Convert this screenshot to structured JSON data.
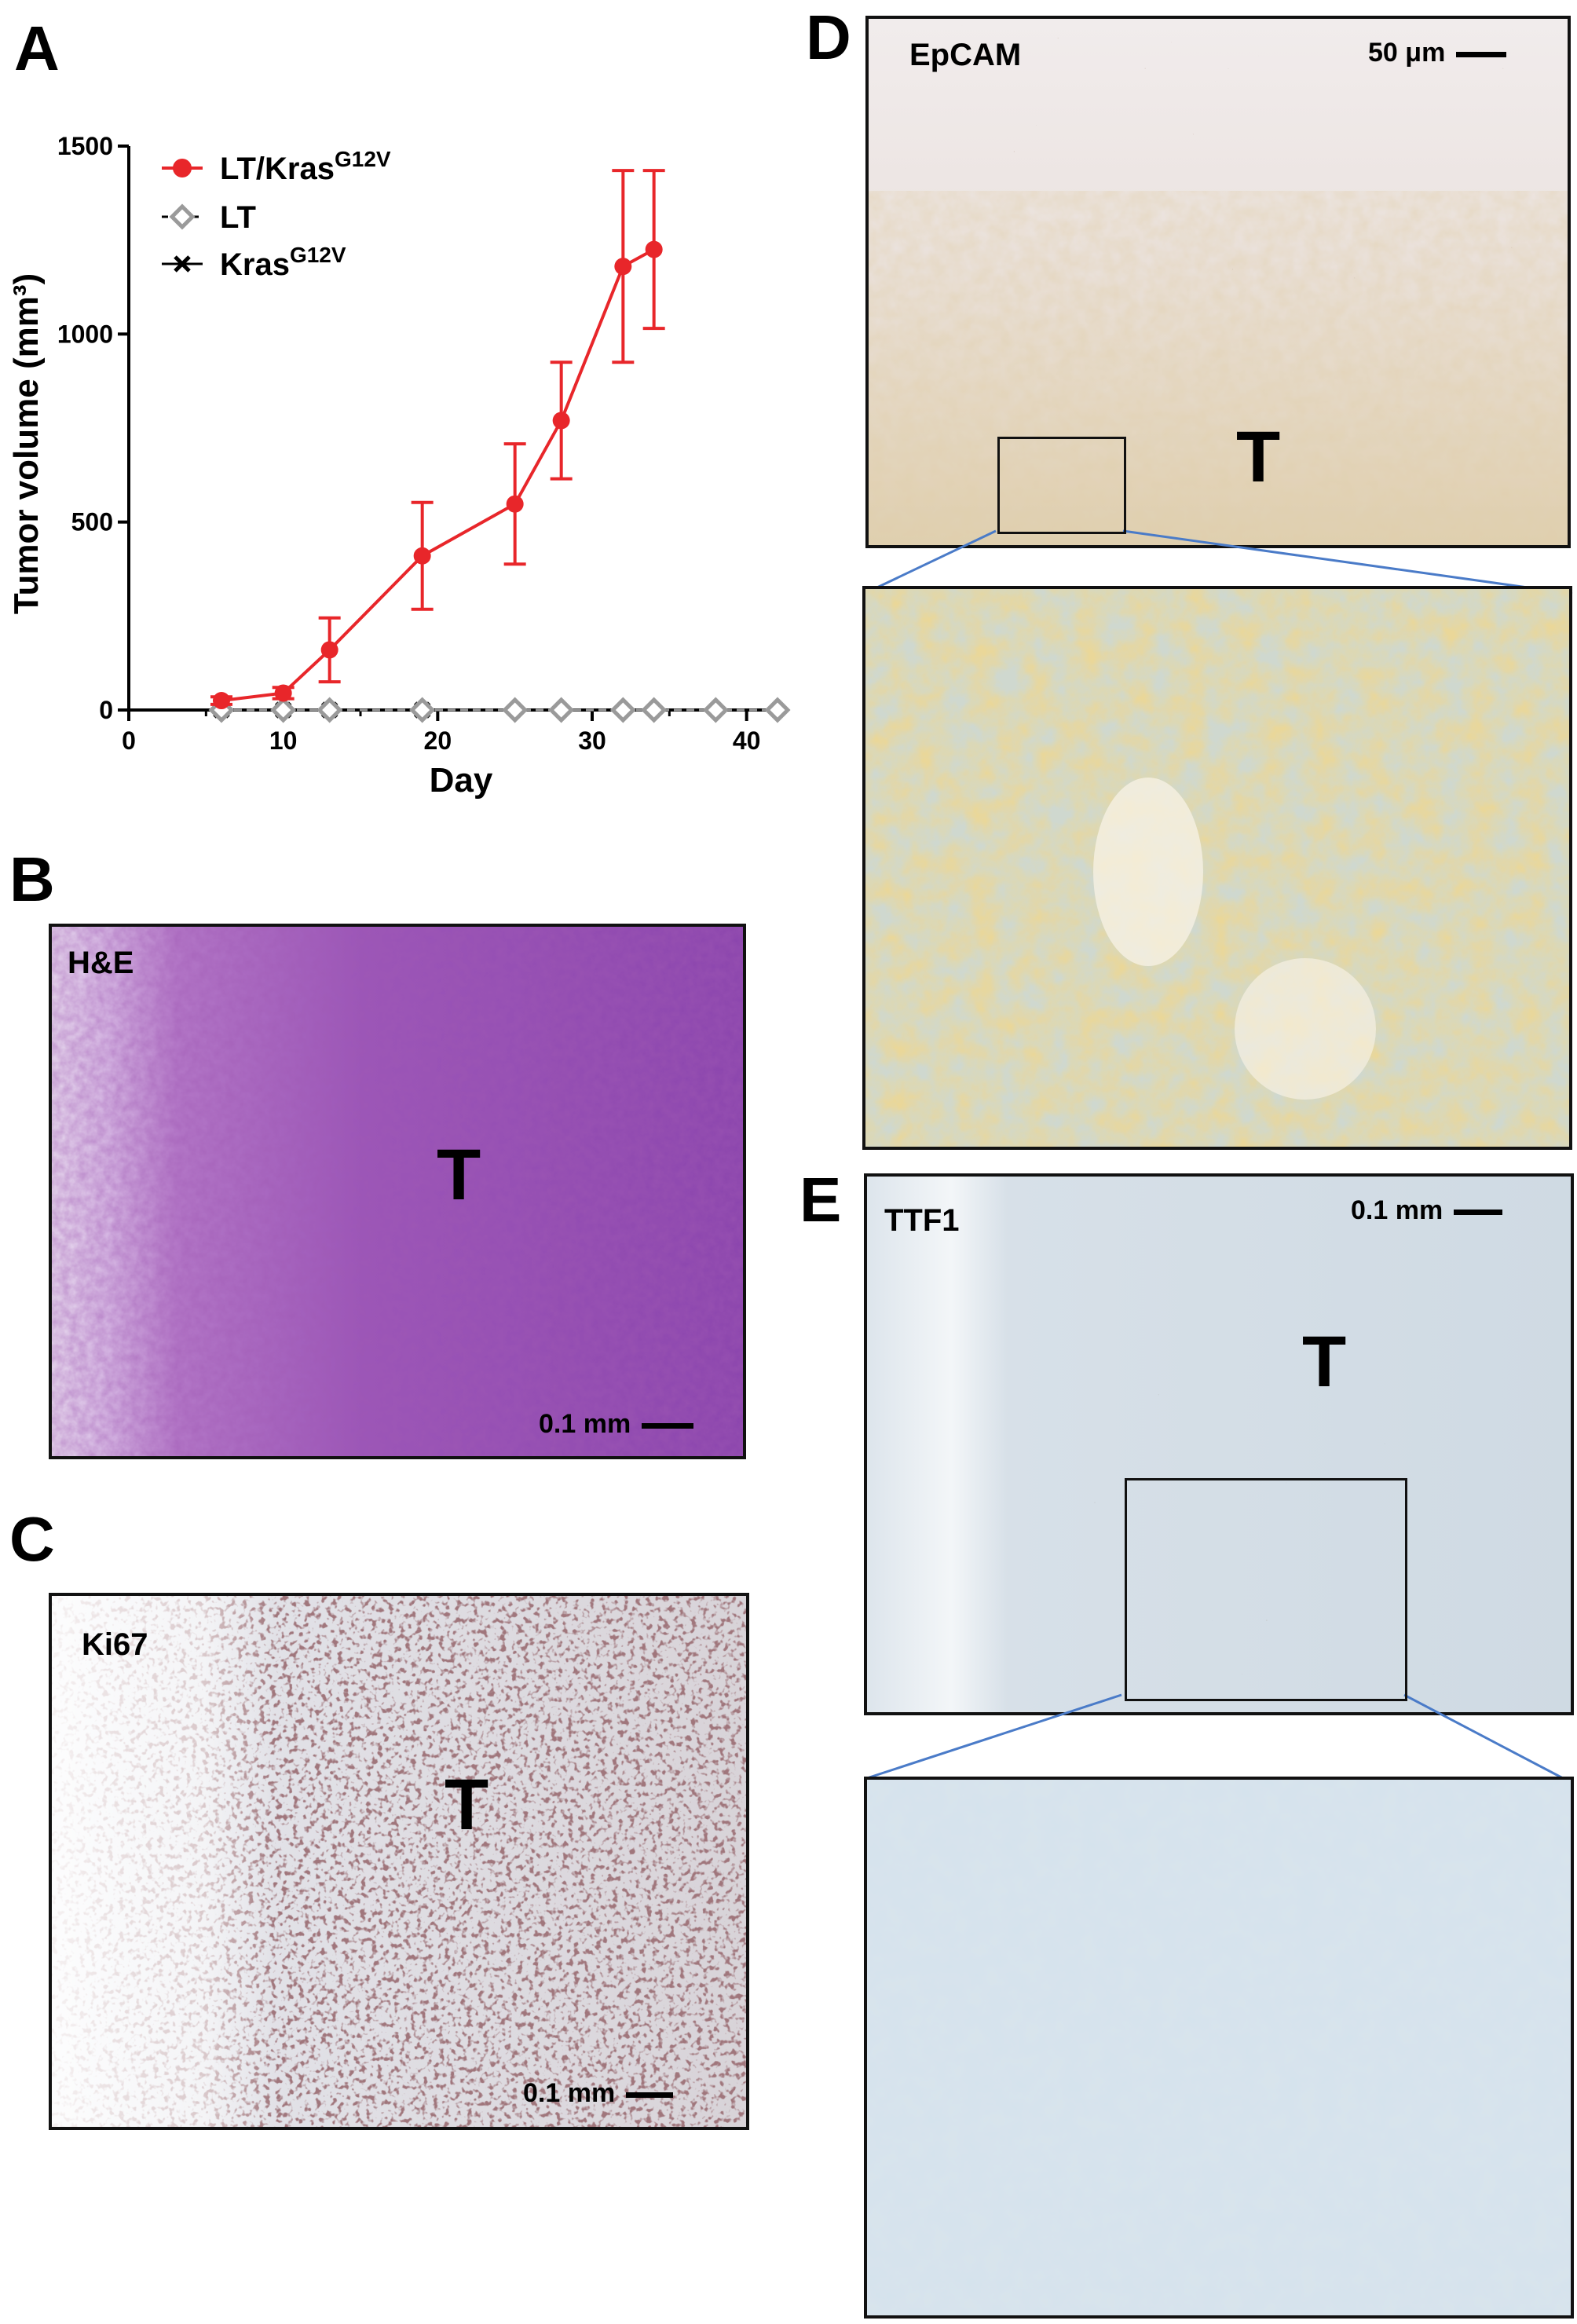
{
  "panels": {
    "a": {
      "letter": "A"
    },
    "b": {
      "letter": "B",
      "stain": "H&E",
      "tumor": "T",
      "scale": "0.1 mm"
    },
    "c": {
      "letter": "C",
      "stain": "Ki67",
      "tumor": "T",
      "scale": "0.1 mm"
    },
    "d": {
      "letter": "D",
      "stain": "EpCAM",
      "tumor": "T",
      "scale": "50 μm"
    },
    "e": {
      "letter": "E",
      "stain": "TTF1",
      "tumor": "T",
      "scale": "0.1 mm"
    }
  },
  "colors": {
    "he_pink": "#c48bd0",
    "he_purple": "#7d3aa8",
    "ki67_bg": "#dfe2e9",
    "ki67_dot": "#5a2f32",
    "epcam_bg": "#efe9e6",
    "epcam_brown": "#c8ab6a",
    "ttf1_bg": "#dfe6ec",
    "ttf1_dot": "#4a3a24",
    "zoom_line": "#4a7bc8",
    "series_red": "#e8262a",
    "series_gray": "#9a9a9a"
  },
  "chart_data": {
    "type": "line",
    "xlabel": "Day",
    "ylabel": "Tumor volume (mm³)",
    "xlim": [
      0,
      42
    ],
    "ylim": [
      0,
      1500
    ],
    "xticks": [
      0,
      10,
      20,
      30,
      40
    ],
    "yticks": [
      0,
      500,
      1000,
      1500
    ],
    "legend_position": "top-left",
    "series": [
      {
        "name": "LT/Kras",
        "name_sup": "G12V",
        "color": "#e8262a",
        "marker": "circle",
        "x": [
          6,
          10,
          13,
          19,
          25,
          28,
          32,
          34
        ],
        "y": [
          25,
          45,
          160,
          410,
          548,
          770,
          1180,
          1225
        ],
        "err": [
          10,
          15,
          85,
          142,
          160,
          155,
          255,
          210
        ]
      },
      {
        "name": "LT",
        "name_sup": "",
        "color": "#9a9a9a",
        "marker": "diamond",
        "x": [
          6,
          10,
          13,
          19,
          25,
          28,
          32,
          34,
          38,
          42
        ],
        "y": [
          0,
          0,
          0,
          0,
          0,
          0,
          0,
          0,
          0,
          0
        ]
      },
      {
        "name": "Kras",
        "name_sup": "G12V",
        "color": "#111111",
        "marker": "cross",
        "x": [
          6,
          10,
          13,
          19
        ],
        "y": [
          0,
          0,
          0,
          0
        ]
      }
    ]
  }
}
